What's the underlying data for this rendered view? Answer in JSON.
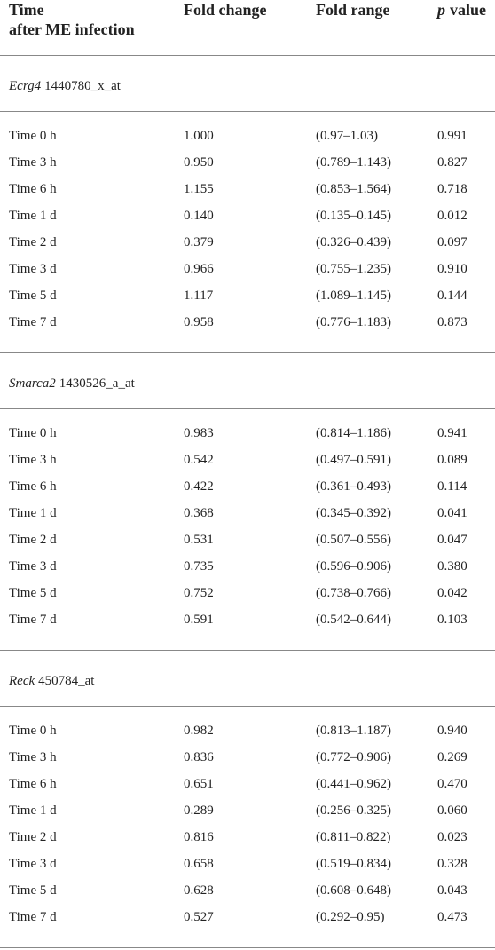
{
  "table": {
    "header": {
      "time": [
        "Time",
        "after ME infection"
      ],
      "fold_change": "Fold change",
      "fold_range": "Fold range",
      "p_value": {
        "symbol": "p",
        "text": "value"
      }
    },
    "groups": [
      {
        "gene": "Ecrg4",
        "probe": "1440780_x_at",
        "rows": [
          [
            "Time 0 h",
            "1.000",
            "(0.97–1.03)",
            "0.991"
          ],
          [
            "Time 3 h",
            "0.950",
            "(0.789–1.143)",
            "0.827"
          ],
          [
            "Time 6 h",
            "1.155",
            "(0.853–1.564)",
            "0.718"
          ],
          [
            "Time 1 d",
            "0.140",
            "(0.135–0.145)",
            "0.012"
          ],
          [
            "Time 2 d",
            "0.379",
            "(0.326–0.439)",
            "0.097"
          ],
          [
            "Time 3 d",
            "0.966",
            "(0.755–1.235)",
            "0.910"
          ],
          [
            "Time 5 d",
            "1.117",
            "(1.089–1.145)",
            "0.144"
          ],
          [
            "Time 7 d",
            "0.958",
            "(0.776–1.183)",
            "0.873"
          ]
        ]
      },
      {
        "gene": "Smarca2",
        "probe": "1430526_a_at",
        "rows": [
          [
            "Time 0 h",
            "0.983",
            "(0.814–1.186)",
            "0.941"
          ],
          [
            "Time 3 h",
            "0.542",
            "(0.497–0.591)",
            "0.089"
          ],
          [
            "Time 6 h",
            "0.422",
            "(0.361–0.493)",
            "0.114"
          ],
          [
            "Time 1 d",
            "0.368",
            "(0.345–0.392)",
            "0.041"
          ],
          [
            "Time 2 d",
            "0.531",
            "(0.507–0.556)",
            "0.047"
          ],
          [
            "Time 3 d",
            "0.735",
            "(0.596–0.906)",
            "0.380"
          ],
          [
            "Time 5 d",
            "0.752",
            "(0.738–0.766)",
            "0.042"
          ],
          [
            "Time 7 d",
            "0.591",
            "(0.542–0.644)",
            "0.103"
          ]
        ]
      },
      {
        "gene": "Reck",
        "probe": "450784_at",
        "rows": [
          [
            "Time 0 h",
            "0.982",
            "(0.813–1.187)",
            "0.940"
          ],
          [
            "Time 3 h",
            "0.836",
            "(0.772–0.906)",
            "0.269"
          ],
          [
            "Time 6 h",
            "0.651",
            "(0.441–0.962)",
            "0.470"
          ],
          [
            "Time 1 d",
            "0.289",
            "(0.256–0.325)",
            "0.060"
          ],
          [
            "Time 2 d",
            "0.816",
            "(0.811–0.822)",
            "0.023"
          ],
          [
            "Time 3 d",
            "0.658",
            "(0.519–0.834)",
            "0.328"
          ],
          [
            "Time 5 d",
            "0.628",
            "(0.608–0.648)",
            "0.043"
          ],
          [
            "Time 7 d",
            "0.527",
            "(0.292–0.95)",
            "0.473"
          ]
        ]
      }
    ]
  }
}
